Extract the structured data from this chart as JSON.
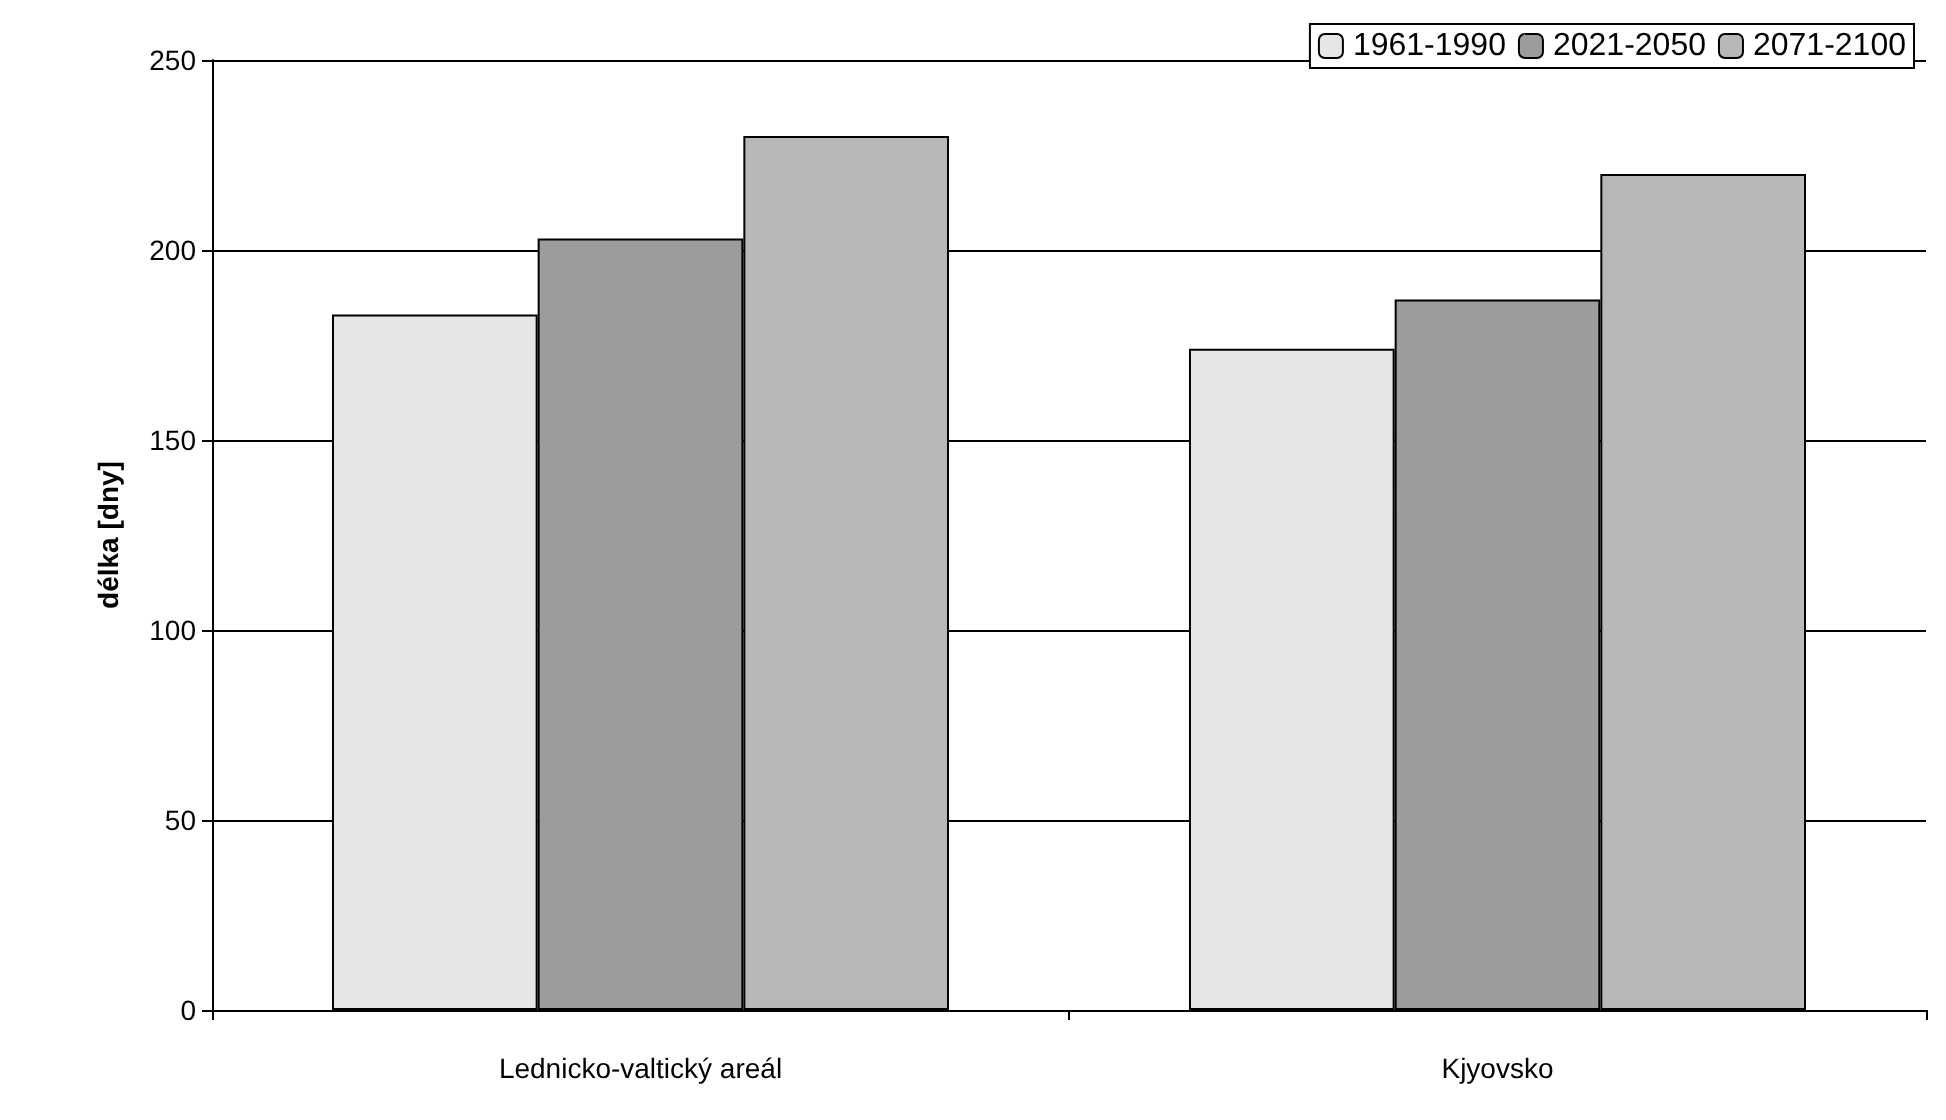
{
  "chart_data": {
    "type": "bar",
    "ylabel": "délka [dny]",
    "categories": [
      "Lednicko-valtický areál",
      "Kjyovsko"
    ],
    "series": [
      {
        "name": "1961-1990",
        "color": "#e6e6e6",
        "values": [
          183,
          174
        ]
      },
      {
        "name": "2021-2050",
        "color": "#9c9c9c",
        "values": [
          203,
          187
        ]
      },
      {
        "name": "2071-2100",
        "color": "#b8b8b8",
        "values": [
          230,
          220
        ]
      }
    ],
    "ylim": [
      0,
      250
    ],
    "yticks": [
      0,
      50,
      100,
      150,
      200,
      250
    ],
    "grid": "y",
    "legend": "top right"
  }
}
